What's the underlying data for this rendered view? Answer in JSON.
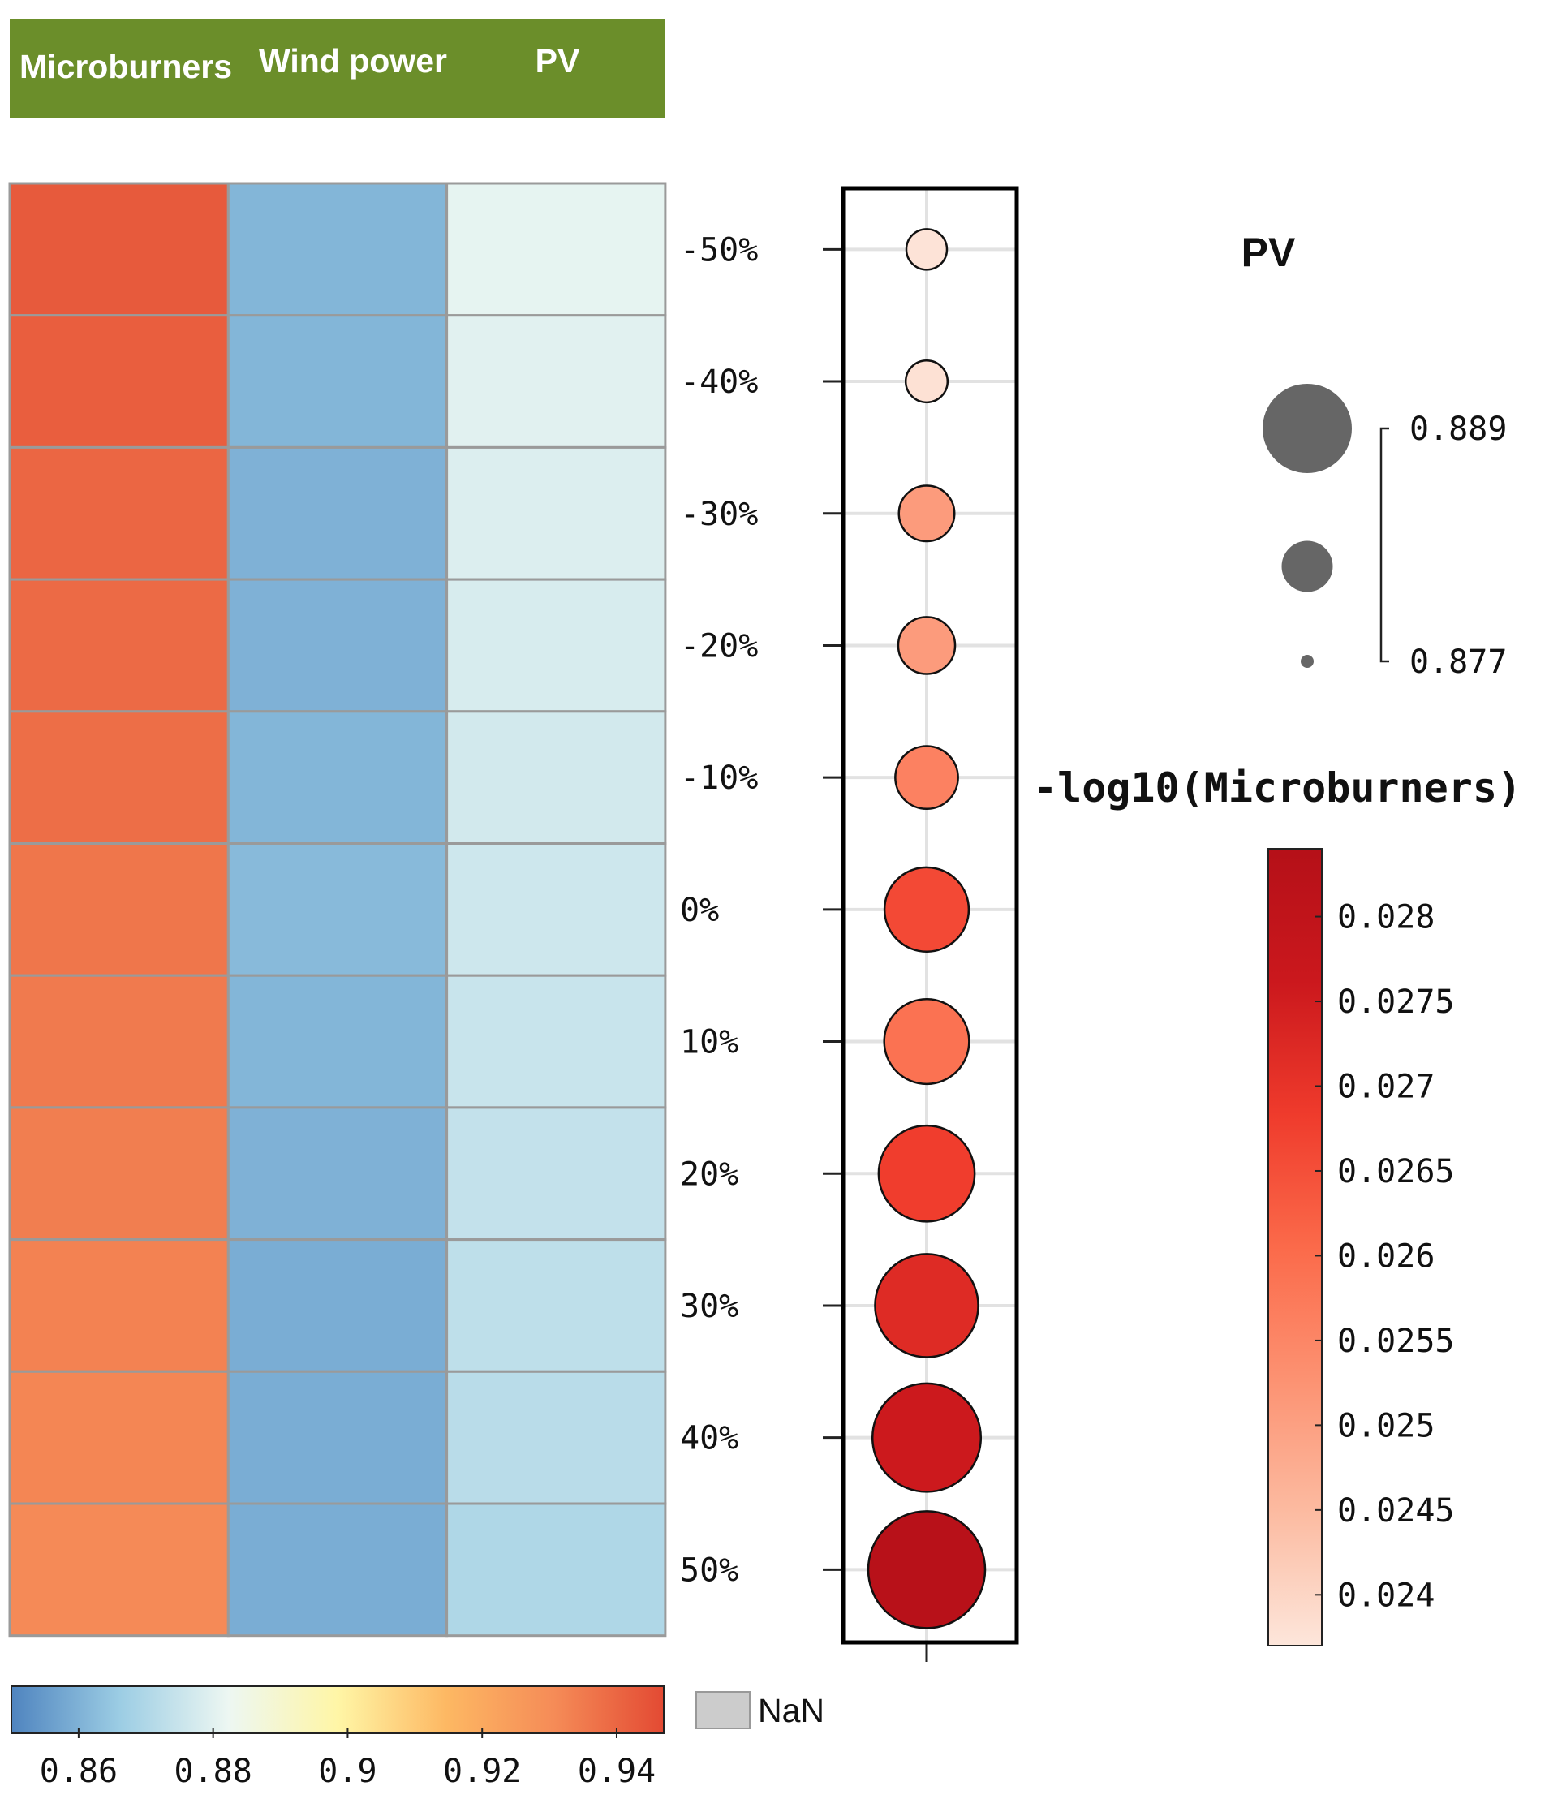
{
  "chart_data": {
    "type": "heatmap",
    "column_headers": [
      "Microburners",
      "Wind power",
      "PV"
    ],
    "header_color": "#6b8e2a",
    "row_labels": [
      "-50%",
      "-40%",
      "-30%",
      "-20%",
      "-10%",
      "0%",
      "10%",
      "20%",
      "30%",
      "40%",
      "50%"
    ],
    "heatmap_values": [
      [
        0.943,
        0.861,
        0.881
      ],
      [
        0.942,
        0.861,
        0.88
      ],
      [
        0.94,
        0.86,
        0.879
      ],
      [
        0.939,
        0.86,
        0.878
      ],
      [
        0.938,
        0.861,
        0.877
      ],
      [
        0.936,
        0.862,
        0.876
      ],
      [
        0.935,
        0.861,
        0.875
      ],
      [
        0.934,
        0.86,
        0.874
      ],
      [
        0.933,
        0.859,
        0.873
      ],
      [
        0.932,
        0.859,
        0.872
      ],
      [
        0.931,
        0.859,
        0.87
      ]
    ],
    "heatmap_colorbar": {
      "min": 0.85,
      "max": 0.947,
      "ticks": [
        0.86,
        0.88,
        0.9,
        0.92,
        0.94
      ],
      "tick_labels": [
        "0.86",
        "0.88",
        "0.9",
        "0.92",
        "0.94"
      ],
      "colors": [
        "#4f84bf",
        "#9ccde4",
        "#edf7f2",
        "#fff6a6",
        "#fdb863",
        "#f58b57",
        "#e34a33"
      ],
      "nan_label": "NaN",
      "nan_color": "#cccccc"
    },
    "bubble": {
      "size_title": "PV",
      "size_values": [
        0.8772,
        0.8774,
        0.8795,
        0.8797,
        0.8806,
        0.8839,
        0.884,
        0.8857,
        0.8868,
        0.8876,
        0.8889
      ],
      "size_legend_labels": [
        "0.889",
        "0.877"
      ],
      "size_legend_values": [
        0.889,
        0.883,
        0.877
      ],
      "size_legend_color": "#666666",
      "color_title": "-log10(Microburners)",
      "color_values": [
        0.02375,
        0.0238,
        0.0251,
        0.0251,
        0.0256,
        0.0266,
        0.0259,
        0.0268,
        0.0272,
        0.0276,
        0.0283
      ],
      "color_min": 0.0237,
      "color_max": 0.0284,
      "color_ticks": [
        0.028,
        0.0275,
        0.027,
        0.0265,
        0.026,
        0.0255,
        0.025,
        0.0245,
        0.024
      ],
      "color_tick_labels": [
        "0.028",
        "0.0275",
        "0.027",
        "0.0265",
        "0.026",
        "0.0255",
        "0.025",
        "0.0245",
        "0.024"
      ],
      "colors": [
        "#fde6db",
        "#fcbba1",
        "#fc9272",
        "#fb6a4a",
        "#ef3b2c",
        "#cb181d",
        "#b51018"
      ]
    }
  }
}
